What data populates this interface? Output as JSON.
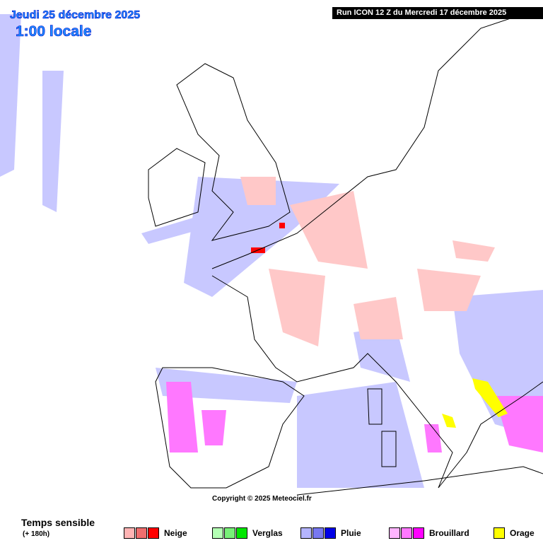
{
  "header": {
    "date": "Jeudi 25 décembre 2025",
    "time": "1:00 locale",
    "run": "Run ICON 12 Z du Mercredi 17 décembre 2025"
  },
  "copyright": "Copyright © 2025 Meteociel.fr",
  "legend": {
    "title": "Temps sensible",
    "subtitle": "(+ 180h)",
    "items": [
      {
        "name": "Neige",
        "colors": [
          "#ffb4b4",
          "#f06e6e",
          "#ff0000"
        ]
      },
      {
        "name": "Verglas",
        "colors": [
          "#b4ffb4",
          "#78f078",
          "#00e600"
        ]
      },
      {
        "name": "Pluie",
        "colors": [
          "#b4b4ff",
          "#7878f0",
          "#0000e6"
        ]
      },
      {
        "name": "Brouillard",
        "colors": [
          "#ffb4ff",
          "#ff78ff",
          "#ff00ff"
        ]
      },
      {
        "name": "Orage",
        "colors": [
          "#ffff00"
        ]
      }
    ]
  }
}
